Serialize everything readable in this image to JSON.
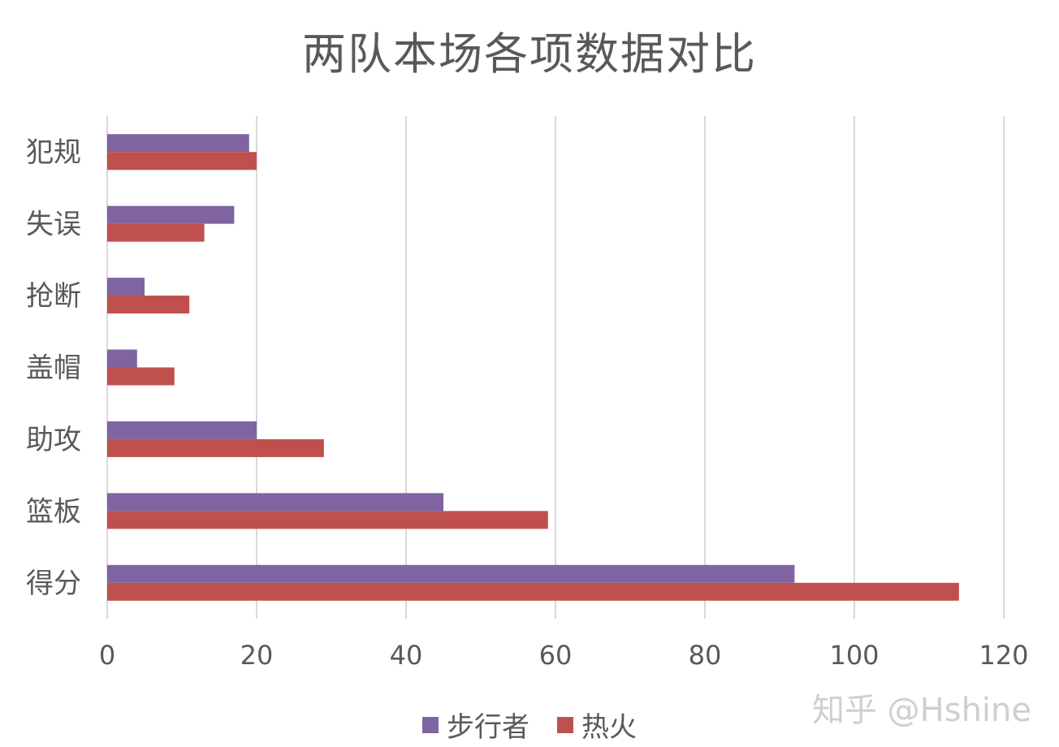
{
  "chart_data": {
    "type": "bar",
    "orientation": "horizontal",
    "title": "两队本场各项数据对比",
    "categories": [
      "犯规",
      "失误",
      "抢断",
      "盖帽",
      "助攻",
      "篮板",
      "得分"
    ],
    "series": [
      {
        "name": "步行者",
        "color": "#8064a2",
        "values": [
          19,
          17,
          5,
          4,
          20,
          45,
          92
        ]
      },
      {
        "name": "热火",
        "color": "#c0504d",
        "values": [
          20,
          13,
          11,
          9,
          29,
          59,
          114
        ]
      }
    ],
    "xlim": [
      0,
      120
    ],
    "xticks": [
      "0",
      "20",
      "40",
      "60",
      "80",
      "100",
      "120"
    ],
    "grid": true,
    "legend_position": "bottom"
  },
  "watermark": "知乎 @Hshine"
}
